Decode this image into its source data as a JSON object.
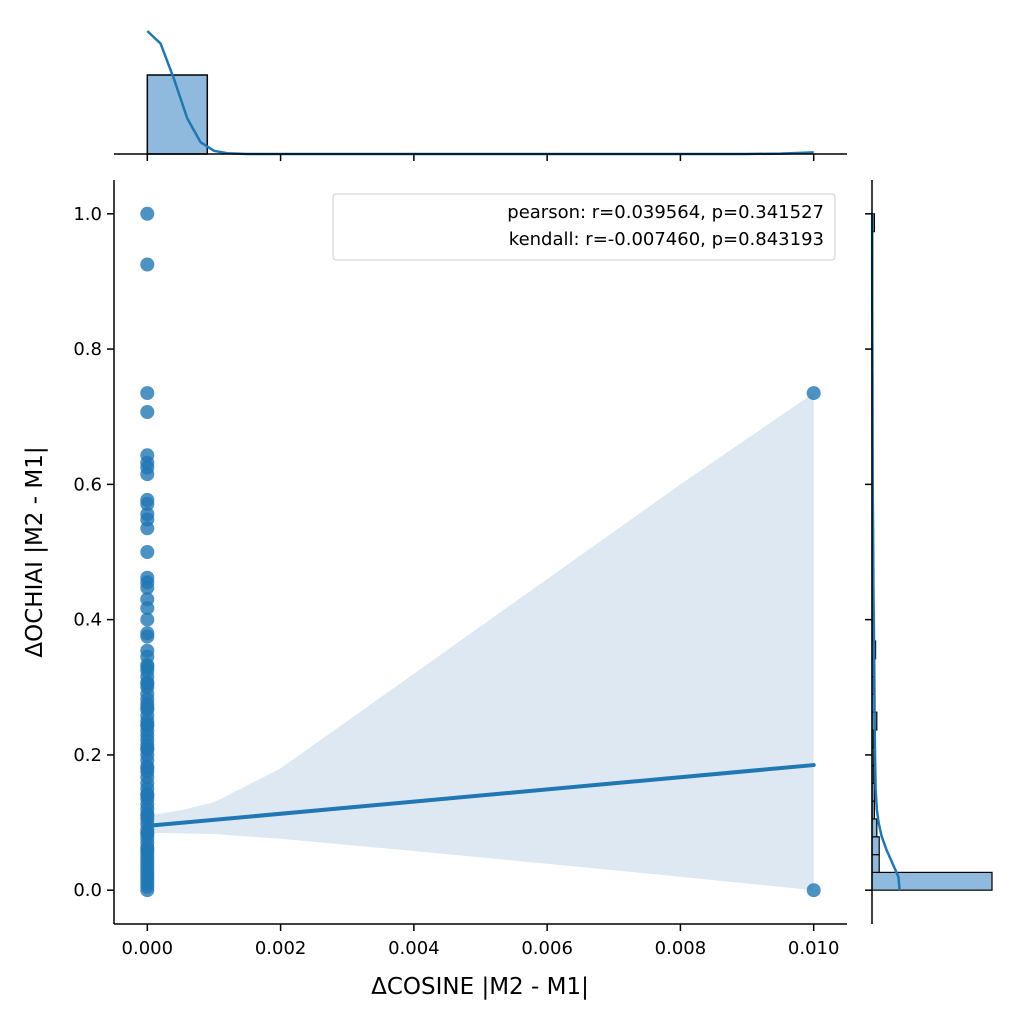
{
  "chart_data": {
    "type": "scatter",
    "title": "",
    "xlabel": "ΔCOSINE |M2 - M1|",
    "ylabel": "ΔOCHIAI |M2 - M1|",
    "xlim": [
      -0.0005,
      0.0105
    ],
    "ylim": [
      -0.05,
      1.05
    ],
    "x_ticks": [
      0.0,
      0.002,
      0.004,
      0.006,
      0.008,
      0.01
    ],
    "x_tick_labels": [
      "0.000",
      "0.002",
      "0.004",
      "0.006",
      "0.008",
      "0.010"
    ],
    "y_ticks": [
      0.0,
      0.2,
      0.4,
      0.6,
      0.8,
      1.0
    ],
    "y_tick_labels": [
      "0.0",
      "0.2",
      "0.4",
      "0.6",
      "0.8",
      "1.0"
    ],
    "grid": false,
    "legend_position": "top-right",
    "annotations": [
      "pearson: r=0.039564, p=0.341527",
      "kendall: r=-0.007460, p=0.843193"
    ],
    "points": {
      "x": [
        0,
        0,
        0,
        0,
        0,
        0,
        0,
        0,
        0,
        0,
        0,
        0,
        0,
        0,
        0,
        0,
        0,
        0,
        0,
        0,
        0,
        0,
        0,
        0,
        0,
        0,
        0,
        0,
        0,
        0,
        0,
        0,
        0,
        0,
        0,
        0,
        0,
        0,
        0,
        0,
        0,
        0,
        0,
        0,
        0,
        0,
        0,
        0,
        0,
        0,
        0,
        0,
        0,
        0,
        0,
        0,
        0,
        0,
        0,
        0,
        0,
        0,
        0,
        0,
        0,
        0,
        0,
        0,
        0,
        0,
        0,
        0,
        0,
        0,
        0,
        0,
        0,
        0,
        0,
        0,
        0,
        0,
        0.01,
        0.01
      ],
      "y": [
        1.0,
        0.925,
        0.735,
        0.707,
        0.643,
        0.632,
        0.625,
        0.615,
        0.577,
        0.571,
        0.556,
        0.548,
        0.535,
        0.5,
        0.462,
        0.455,
        0.447,
        0.43,
        0.417,
        0.4,
        0.38,
        0.375,
        0.354,
        0.345,
        0.333,
        0.325,
        0.316,
        0.307,
        0.3,
        0.29,
        0.282,
        0.275,
        0.267,
        0.258,
        0.25,
        0.243,
        0.236,
        0.229,
        0.222,
        0.215,
        0.208,
        0.2,
        0.192,
        0.183,
        0.175,
        0.167,
        0.158,
        0.15,
        0.142,
        0.135,
        0.127,
        0.12,
        0.113,
        0.105,
        0.098,
        0.09,
        0.083,
        0.077,
        0.07,
        0.063,
        0.056,
        0.05,
        0.045,
        0.04,
        0.035,
        0.03,
        0.025,
        0.02,
        0.015,
        0.01,
        0.005,
        0.0,
        0.14,
        0.18,
        0.21,
        0.245,
        0.27,
        0.305,
        0.33,
        0.085,
        0.06,
        0.11,
        0.735,
        0.0
      ]
    },
    "regression": {
      "x": [
        0.0,
        0.01
      ],
      "y": [
        0.095,
        0.185
      ]
    },
    "confidence_band": {
      "x": [
        0.0,
        0.0005,
        0.001,
        0.002,
        0.004,
        0.006,
        0.008,
        0.01
      ],
      "upper": [
        0.11,
        0.118,
        0.13,
        0.18,
        0.32,
        0.46,
        0.6,
        0.735
      ],
      "lower": [
        0.085,
        0.084,
        0.083,
        0.076,
        0.058,
        0.039,
        0.02,
        0.0
      ]
    },
    "top_histogram": {
      "bins": [
        [
          0.0,
          0.0009
        ],
        [
          0.0009,
          0.0101
        ]
      ],
      "heights": [
        1.0,
        0.0
      ],
      "kde": {
        "x": [
          0.0,
          0.0002,
          0.0004,
          0.0006,
          0.0008,
          0.001,
          0.0012,
          0.0015,
          0.002,
          0.003,
          0.004,
          0.005,
          0.006,
          0.007,
          0.008,
          0.009,
          0.0095,
          0.01
        ],
        "y": [
          1.56,
          1.4,
          0.95,
          0.45,
          0.15,
          0.04,
          0.01,
          0.0,
          0.0,
          0.0,
          0.0,
          0.0,
          0.0,
          0.0,
          0.0,
          0.0,
          0.005,
          0.02
        ]
      }
    },
    "right_histogram": {
      "bins": [
        [
          0.0,
          0.0263
        ],
        [
          0.0263,
          0.0526
        ],
        [
          0.0526,
          0.0789
        ],
        [
          0.0789,
          0.1053
        ],
        [
          0.1053,
          0.1316
        ],
        [
          0.1316,
          0.1579
        ],
        [
          0.1579,
          0.1842
        ],
        [
          0.1842,
          0.2105
        ],
        [
          0.2105,
          0.2368
        ],
        [
          0.2368,
          0.2632
        ],
        [
          0.2632,
          0.2895
        ],
        [
          0.2895,
          0.3158
        ],
        [
          0.3158,
          0.3421
        ],
        [
          0.3421,
          0.3684
        ],
        [
          0.3684,
          0.3947
        ],
        [
          0.3947,
          0.4211
        ],
        [
          0.4211,
          0.4474
        ],
        [
          0.4474,
          0.4737
        ],
        [
          0.4737,
          0.5
        ],
        [
          0.5,
          0.5263
        ],
        [
          0.5263,
          0.5526
        ],
        [
          0.5526,
          0.5789
        ],
        [
          0.5789,
          0.6053
        ],
        [
          0.6053,
          0.6316
        ],
        [
          0.6316,
          0.6579
        ],
        [
          0.6579,
          0.6842
        ],
        [
          0.6842,
          0.7105
        ],
        [
          0.7105,
          0.7368
        ],
        [
          0.7368,
          0.7632
        ],
        [
          0.7632,
          0.7895
        ],
        [
          0.7895,
          0.8158
        ],
        [
          0.8158,
          0.8421
        ],
        [
          0.8421,
          0.8684
        ],
        [
          0.8684,
          0.8947
        ],
        [
          0.8947,
          0.9211
        ],
        [
          0.9211,
          0.9474
        ],
        [
          0.9474,
          0.9737
        ],
        [
          0.9737,
          1.0
        ]
      ],
      "heights": [
        1.0,
        0.06,
        0.06,
        0.04,
        0.02,
        0.02,
        0.015,
        0.015,
        0.012,
        0.04,
        0.02,
        0.015,
        0.015,
        0.03,
        0.01,
        0.008,
        0.008,
        0.008,
        0.008,
        0.008,
        0.008,
        0.008,
        0.008,
        0.008,
        0.008,
        0.008,
        0.008,
        0.008,
        0.008,
        0.005,
        0.005,
        0.005,
        0.005,
        0.005,
        0.005,
        0.005,
        0.005,
        0.02
      ],
      "kde": {
        "y": [
          0.0,
          0.02,
          0.04,
          0.06,
          0.08,
          0.1,
          0.12,
          0.15,
          0.2,
          0.25,
          0.3,
          0.35,
          0.4,
          0.45,
          0.5,
          0.55,
          0.6,
          0.65,
          0.7,
          0.8,
          0.9,
          1.0
        ],
        "x": [
          0.23,
          0.22,
          0.17,
          0.12,
          0.08,
          0.055,
          0.04,
          0.03,
          0.025,
          0.022,
          0.02,
          0.018,
          0.015,
          0.012,
          0.01,
          0.008,
          0.006,
          0.005,
          0.004,
          0.003,
          0.002,
          0.002
        ]
      }
    },
    "colors": {
      "scatter": "#1f77b4",
      "regression": "#1f77b4",
      "band": "#dde8f3",
      "histogram_fill": "#8fbadd",
      "histogram_edge": "#000000",
      "kde": "#1f77b4"
    }
  }
}
